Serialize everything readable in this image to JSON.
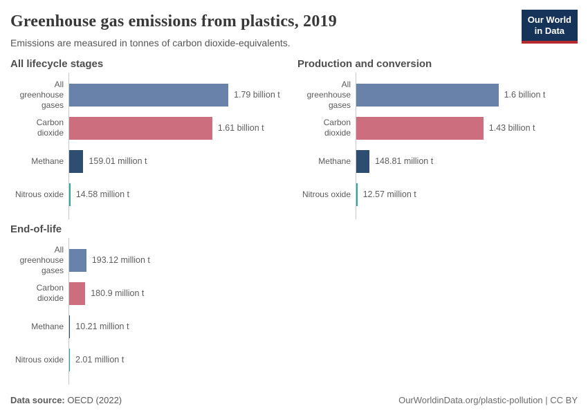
{
  "header": {
    "title": "Greenhouse gas emissions from plastics, 2019",
    "subtitle": "Emissions are measured in tonnes of carbon dioxide-equivalents.",
    "logo": {
      "line1": "Our World",
      "line2": "in Data",
      "bg_color": "#16335a",
      "accent_color": "#b5292f"
    }
  },
  "chart_data": [
    {
      "type": "bar",
      "orientation": "horizontal",
      "title": "All lifecycle stages",
      "unit": "tonnes of carbon dioxide-equivalents",
      "categories": [
        "All greenhouse gases",
        "Carbon dioxide",
        "Methane",
        "Nitrous oxide"
      ],
      "values_million_t": [
        1790,
        1610,
        159.01,
        14.58
      ],
      "value_labels": [
        "1.79 billion t",
        "1.61 billion t",
        "159.01 million t",
        "14.58 million t"
      ]
    },
    {
      "type": "bar",
      "orientation": "horizontal",
      "title": "Production and conversion",
      "unit": "tonnes of carbon dioxide-equivalents",
      "categories": [
        "All greenhouse gases",
        "Carbon dioxide",
        "Methane",
        "Nitrous oxide"
      ],
      "values_million_t": [
        1600,
        1430,
        148.81,
        12.57
      ],
      "value_labels": [
        "1.6 billion t",
        "1.43 billion t",
        "148.81 million t",
        "12.57 million t"
      ]
    },
    {
      "type": "bar",
      "orientation": "horizontal",
      "title": "End-of-life",
      "unit": "tonnes of carbon dioxide-equivalents",
      "categories": [
        "All greenhouse gases",
        "Carbon dioxide",
        "Methane",
        "Nitrous oxide"
      ],
      "values_million_t": [
        193.12,
        180.9,
        10.21,
        2.01
      ],
      "value_labels": [
        "193.12 million t",
        "180.9 million t",
        "10.21 million t",
        "2.01 million t"
      ]
    }
  ],
  "style": {
    "bar_colors": [
      "#6982aa",
      "#cd6e7f",
      "#2d4e71",
      "#2ba8a2"
    ],
    "axis_color": "#c8c8c8"
  },
  "footer": {
    "source_label": "Data source:",
    "source_value": "OECD (2022)",
    "credit": "OurWorldinData.org/plastic-pollution | CC BY"
  }
}
